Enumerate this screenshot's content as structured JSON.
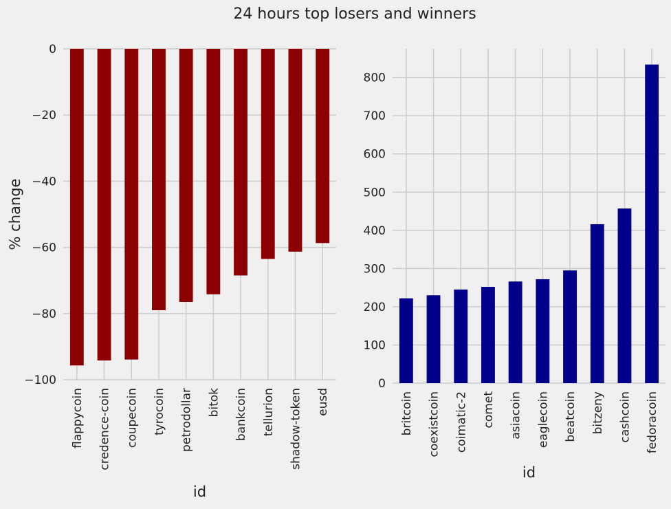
{
  "figure": {
    "title": "24 hours top losers and winners",
    "background": "#f0f0f0",
    "grid_color": "#cbcbcb"
  },
  "chart_data": [
    {
      "type": "bar",
      "title": "",
      "xlabel": "id",
      "ylabel": "% change",
      "ylim": [
        -100,
        0
      ],
      "yticks": [
        0,
        -20,
        -40,
        -60,
        -80,
        -100
      ],
      "ytick_labels": [
        "0",
        "−20",
        "−40",
        "−60",
        "−80",
        "−100"
      ],
      "grid": true,
      "color": "#8b0000",
      "categories": [
        "flappycoin",
        "credence-coin",
        "coupecoin",
        "tyrocoin",
        "petrodollar",
        "bitok",
        "bankcoin",
        "tellurion",
        "shadow-token",
        "eusd"
      ],
      "values": [
        -95.7,
        -94.2,
        -93.9,
        -79.0,
        -76.5,
        -74.2,
        -68.5,
        -63.5,
        -61.3,
        -58.7
      ]
    },
    {
      "type": "bar",
      "title": "",
      "xlabel": "id",
      "ylabel": "",
      "ylim": [
        0,
        875
      ],
      "yticks": [
        0,
        100,
        200,
        300,
        400,
        500,
        600,
        700,
        800
      ],
      "ytick_labels": [
        "0",
        "100",
        "200",
        "300",
        "400",
        "500",
        "600",
        "700",
        "800"
      ],
      "grid": true,
      "color": "#00008b",
      "categories": [
        "britcoin",
        "coexistcoin",
        "coimatic-2",
        "comet",
        "asiacoin",
        "eaglecoin",
        "beatcoin",
        "bitzeny",
        "cashcoin",
        "fedoracoin"
      ],
      "values": [
        222,
        230,
        245,
        252,
        266,
        272,
        295,
        416,
        457,
        834
      ]
    }
  ]
}
